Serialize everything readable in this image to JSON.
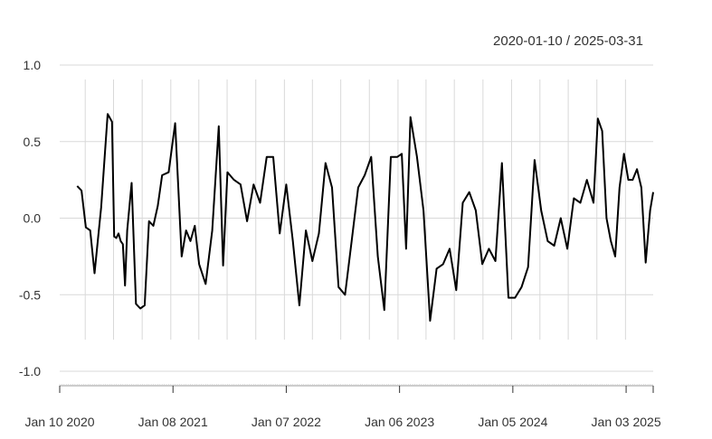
{
  "chart_data": {
    "type": "line",
    "title": "2020-01-10 / 2025-03-31",
    "xlabel": "",
    "ylabel": "",
    "ylim": [
      -1.0,
      1.0
    ],
    "xlim": [
      "2020-01-10",
      "2025-03-31"
    ],
    "yticks": [
      {
        "value": 1.0,
        "label": "1.0"
      },
      {
        "value": 0.5,
        "label": "0.5"
      },
      {
        "value": 0.0,
        "label": "0.0"
      },
      {
        "value": -0.5,
        "label": "-0.5"
      },
      {
        "value": -1.0,
        "label": "-1.0"
      }
    ],
    "xticks": [
      {
        "date": "2020-01-10",
        "label": "Jan 10 2020"
      },
      {
        "date": "2021-01-08",
        "label": "Jan 08 2021"
      },
      {
        "date": "2022-01-07",
        "label": "Jan 07 2022"
      },
      {
        "date": "2023-01-06",
        "label": "Jan 06 2023"
      },
      {
        "date": "2024-01-05",
        "label": "Jan 05 2024"
      },
      {
        "date": "2025-01-03",
        "label": "Jan 03 2025"
      }
    ],
    "grid": true,
    "line_color": "#000000",
    "series": [
      {
        "x": [
          "2020-03-06",
          "2020-03-20",
          "2020-04-03",
          "2020-04-17",
          "2020-05-01",
          "2020-05-22",
          "2020-06-12",
          "2020-06-26",
          "2020-07-03",
          "2020-07-10",
          "2020-07-17",
          "2020-07-24",
          "2020-07-31",
          "2020-08-07",
          "2020-08-14",
          "2020-08-28",
          "2020-09-11",
          "2020-09-25",
          "2020-10-09",
          "2020-10-23",
          "2020-11-06",
          "2020-11-20",
          "2020-12-04",
          "2020-12-25",
          "2021-01-15",
          "2021-02-05",
          "2021-02-19",
          "2021-03-05",
          "2021-03-19",
          "2021-04-02",
          "2021-04-23",
          "2021-05-14",
          "2021-06-04",
          "2021-06-18",
          "2021-07-02",
          "2021-07-23",
          "2021-08-13",
          "2021-09-03",
          "2021-09-24",
          "2021-10-15",
          "2021-11-05",
          "2021-11-26",
          "2021-12-17",
          "2022-01-07",
          "2022-01-28",
          "2022-02-18",
          "2022-03-11",
          "2022-04-01",
          "2022-04-22",
          "2022-05-13",
          "2022-06-03",
          "2022-06-24",
          "2022-07-15",
          "2022-08-05",
          "2022-08-26",
          "2022-09-16",
          "2022-10-07",
          "2022-10-28",
          "2022-11-18",
          "2022-12-09",
          "2022-12-30",
          "2023-01-13",
          "2023-01-27",
          "2023-02-10",
          "2023-03-03",
          "2023-03-24",
          "2023-04-14",
          "2023-05-05",
          "2023-05-26",
          "2023-06-16",
          "2023-07-07",
          "2023-07-28",
          "2023-08-18",
          "2023-09-08",
          "2023-09-29",
          "2023-10-20",
          "2023-11-10",
          "2023-12-01",
          "2023-12-22",
          "2024-01-12",
          "2024-02-02",
          "2024-02-23",
          "2024-03-15",
          "2024-04-05",
          "2024-04-26",
          "2024-05-17",
          "2024-06-07",
          "2024-06-28",
          "2024-07-19",
          "2024-08-09",
          "2024-08-30",
          "2024-09-20",
          "2024-10-04",
          "2024-10-18",
          "2024-11-01",
          "2024-11-15",
          "2024-11-29",
          "2024-12-13",
          "2024-12-27",
          "2025-01-10",
          "2025-01-24",
          "2025-02-07",
          "2025-02-21",
          "2025-03-07",
          "2025-03-21",
          "2025-03-31"
        ],
        "values": [
          0.21,
          0.18,
          -0.06,
          -0.08,
          -0.36,
          0.07,
          0.68,
          0.63,
          -0.12,
          -0.13,
          -0.1,
          -0.15,
          -0.17,
          -0.44,
          -0.08,
          0.23,
          -0.56,
          -0.59,
          -0.57,
          -0.02,
          -0.05,
          0.08,
          0.28,
          0.3,
          0.62,
          -0.25,
          -0.08,
          -0.15,
          -0.05,
          -0.3,
          -0.43,
          -0.08,
          0.6,
          -0.31,
          0.3,
          0.25,
          0.22,
          -0.02,
          0.22,
          0.1,
          0.4,
          0.4,
          -0.1,
          0.22,
          -0.15,
          -0.57,
          -0.08,
          -0.28,
          -0.1,
          0.36,
          0.2,
          -0.45,
          -0.5,
          -0.15,
          0.2,
          0.28,
          0.4,
          -0.25,
          -0.6,
          0.4,
          0.4,
          0.42,
          -0.2,
          0.66,
          0.4,
          0.05,
          -0.67,
          -0.33,
          -0.3,
          -0.2,
          -0.47,
          0.1,
          0.17,
          0.05,
          -0.3,
          -0.2,
          -0.28,
          0.36,
          -0.52,
          -0.52,
          -0.45,
          -0.32,
          0.38,
          0.05,
          -0.15,
          -0.18,
          0.0,
          -0.2,
          0.13,
          0.1,
          0.25,
          0.1,
          0.65,
          0.57,
          0.0,
          -0.15,
          -0.25,
          0.2,
          0.42,
          0.25,
          0.25,
          0.32,
          0.2,
          -0.29,
          0.05,
          0.17
        ]
      }
    ]
  }
}
